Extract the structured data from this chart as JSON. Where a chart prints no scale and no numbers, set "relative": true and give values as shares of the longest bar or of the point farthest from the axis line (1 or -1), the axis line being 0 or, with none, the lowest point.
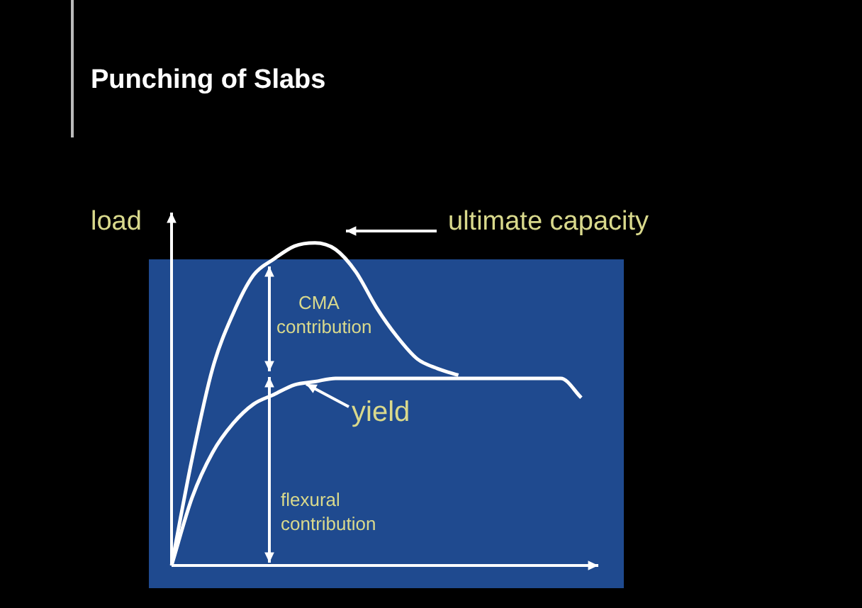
{
  "chart_data": {
    "type": "line",
    "title": "Punching of Slabs",
    "relative": true,
    "legend": false,
    "marker": "none",
    "line_style": "solid",
    "tick_labels": false,
    "categories": [
      null,
      null,
      null,
      null,
      null,
      null,
      null,
      null,
      null,
      null,
      null,
      null,
      null,
      null,
      null,
      null,
      null,
      null,
      null,
      null,
      null
    ],
    "series": [
      {
        "color": "#ffffff",
        "values": [
          0,
          0.33,
          0.61,
          0.78,
          0.9,
          0.95,
          0.99,
          1,
          0.98,
          0.91,
          0.8,
          0.71,
          0.64,
          0.61,
          0.59,
          null,
          null,
          null,
          null,
          null,
          null
        ]
      },
      {
        "color": "#ffffff",
        "values": [
          0,
          0.21,
          0.35,
          0.44,
          0.5,
          0.53,
          0.56,
          0.57,
          0.58,
          0.58,
          0.58,
          0.58,
          0.58,
          0.58,
          0.58,
          0.58,
          0.58,
          0.58,
          0.58,
          0.58,
          0.52
        ]
      }
    ],
    "annotations": [
      "load",
      "ultimate capacity",
      "CMA contribution",
      "yield",
      "flexural contribution"
    ]
  }
}
